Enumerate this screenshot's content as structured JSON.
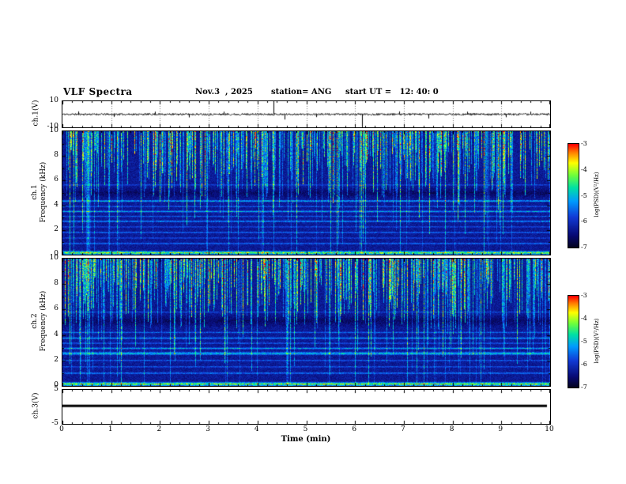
{
  "header": {
    "title": "VLF Spectra",
    "date": "Nov.3  , 2025",
    "station": "station= ANG",
    "start_ut": "start UT =   12: 40: 0"
  },
  "x_axis": {
    "label": "Time (min)",
    "lim": [
      0,
      10
    ],
    "ticks": [
      0,
      1,
      2,
      3,
      4,
      5,
      6,
      7,
      8,
      9,
      10
    ],
    "minor_step": 0.2
  },
  "colorbars": [
    {
      "label": "log(PSD)(V²/Hz)",
      "range": [
        -7,
        -3
      ],
      "ticks": [
        -3,
        -4,
        -5,
        -6,
        -7
      ]
    },
    {
      "label": "log(PSD)(V²/Hz)",
      "range": [
        -7,
        -3
      ],
      "ticks": [
        -3,
        -4,
        -5,
        -6,
        -7
      ]
    }
  ],
  "colormap_stops": [
    {
      "v": 0.0,
      "c": [
        4,
        4,
        28
      ]
    },
    {
      "v": 0.12,
      "c": [
        8,
        10,
        115
      ]
    },
    {
      "v": 0.3,
      "c": [
        18,
        60,
        215
      ]
    },
    {
      "v": 0.45,
      "c": [
        0,
        155,
        255
      ]
    },
    {
      "v": 0.58,
      "c": [
        0,
        225,
        165
      ]
    },
    {
      "v": 0.7,
      "c": [
        110,
        255,
        60
      ]
    },
    {
      "v": 0.82,
      "c": [
        255,
        255,
        0
      ]
    },
    {
      "v": 0.92,
      "c": [
        255,
        128,
        0
      ]
    },
    {
      "v": 1.0,
      "c": [
        255,
        0,
        0
      ]
    }
  ],
  "chart_data": [
    {
      "type": "line",
      "name": "ch1 waveform",
      "ylabel": "ch.1(V)",
      "ylim": [
        -10,
        10
      ],
      "yticks": [
        10,
        -10
      ],
      "noise_amp_v": 0.7,
      "seed": 11,
      "spikes": [
        {
          "t": 0.32,
          "v": 2.2
        },
        {
          "t": 1.05,
          "v": -2.0
        },
        {
          "t": 1.9,
          "v": 2.0
        },
        {
          "t": 2.6,
          "v": -2.4
        },
        {
          "t": 3.3,
          "v": 2.0
        },
        {
          "t": 4.33,
          "v": 11.0
        },
        {
          "t": 4.55,
          "v": -4.0
        },
        {
          "t": 5.2,
          "v": -2.2
        },
        {
          "t": 6.15,
          "v": -11.0
        },
        {
          "t": 6.9,
          "v": 2.2
        },
        {
          "t": 7.5,
          "v": -3.2
        },
        {
          "t": 8.3,
          "v": 2.0
        },
        {
          "t": 9.1,
          "v": -2.3
        },
        {
          "t": 9.6,
          "v": 2.0
        }
      ]
    },
    {
      "type": "heatmap",
      "name": "ch1 spectrogram",
      "ylabel_line1": "ch.1",
      "ylabel_line2": "Frequency (kHz)",
      "ylim": [
        0,
        10
      ],
      "yticks": [
        0,
        2,
        4,
        6,
        8,
        10
      ],
      "psd_range": [
        -7,
        -3
      ],
      "seed": 20251103,
      "base_level": 0.13,
      "noise_level": 0.1,
      "horizontal_lines": [
        {
          "f": 0.15,
          "a": 0.55,
          "w": 0.2
        },
        {
          "f": 0.9,
          "a": 0.22,
          "w": 0.1
        },
        {
          "f": 1.35,
          "a": 0.16,
          "w": 0.08
        },
        {
          "f": 1.8,
          "a": 0.24,
          "w": 0.08
        },
        {
          "f": 2.25,
          "a": 0.16,
          "w": 0.08
        },
        {
          "f": 2.7,
          "a": 0.28,
          "w": 0.1
        },
        {
          "f": 3.1,
          "a": 0.18,
          "w": 0.08
        },
        {
          "f": 3.5,
          "a": 0.3,
          "w": 0.1
        },
        {
          "f": 3.9,
          "a": 0.2,
          "w": 0.08
        },
        {
          "f": 4.35,
          "a": 0.34,
          "w": 0.1
        },
        {
          "f": 5.0,
          "a": -0.08,
          "w": 0.5
        },
        {
          "f": 5.65,
          "a": 0.16,
          "w": 0.07
        }
      ],
      "streaks": {
        "density": 0.55,
        "amp_min": 0.3,
        "amp_max": 1.0,
        "upper_min": 4.5,
        "upper_max": 8.7,
        "deep_prob": 0.18,
        "full_prob": 0.07
      },
      "bright_events": [
        {
          "t": 0.52,
          "amp": 0.8,
          "w": 3
        },
        {
          "t": 4.1,
          "amp": 0.65,
          "w": 2
        },
        {
          "t": 6.2,
          "amp": 0.7,
          "w": 2
        }
      ]
    },
    {
      "type": "heatmap",
      "name": "ch2 spectrogram",
      "ylabel_line1": "ch.2",
      "ylabel_line2": "Frequency (kHz)",
      "ylim": [
        0,
        10
      ],
      "yticks": [
        0,
        2,
        4,
        6,
        8,
        10
      ],
      "psd_range": [
        -7,
        -3
      ],
      "seed": 7041977,
      "base_level": 0.13,
      "noise_level": 0.1,
      "horizontal_lines": [
        {
          "f": 0.15,
          "a": 0.55,
          "w": 0.2
        },
        {
          "f": 1.0,
          "a": 0.24,
          "w": 0.1
        },
        {
          "f": 1.5,
          "a": 0.18,
          "w": 0.08
        },
        {
          "f": 2.0,
          "a": 0.2,
          "w": 0.08
        },
        {
          "f": 2.55,
          "a": 0.36,
          "w": 0.16
        },
        {
          "f": 2.95,
          "a": 0.28,
          "w": 0.1
        },
        {
          "f": 3.35,
          "a": 0.2,
          "w": 0.08
        },
        {
          "f": 3.75,
          "a": 0.26,
          "w": 0.1
        },
        {
          "f": 4.2,
          "a": 0.2,
          "w": 0.08
        },
        {
          "f": 5.1,
          "a": -0.08,
          "w": 0.55
        },
        {
          "f": 5.8,
          "a": 0.14,
          "w": 0.07
        }
      ],
      "streaks": {
        "density": 0.55,
        "amp_min": 0.3,
        "amp_max": 1.0,
        "upper_min": 4.5,
        "upper_max": 8.7,
        "deep_prob": 0.18,
        "full_prob": 0.07
      },
      "bright_events": [
        {
          "t": 0.52,
          "amp": 0.8,
          "w": 3
        },
        {
          "t": 4.6,
          "amp": 0.65,
          "w": 2
        }
      ]
    },
    {
      "type": "line",
      "name": "ch3 waveform",
      "ylabel": "ch.3(V)",
      "ylim": [
        -5,
        5
      ],
      "yticks": [
        5,
        -5
      ],
      "constant_value": 0.3,
      "line_thickness": 3
    }
  ]
}
